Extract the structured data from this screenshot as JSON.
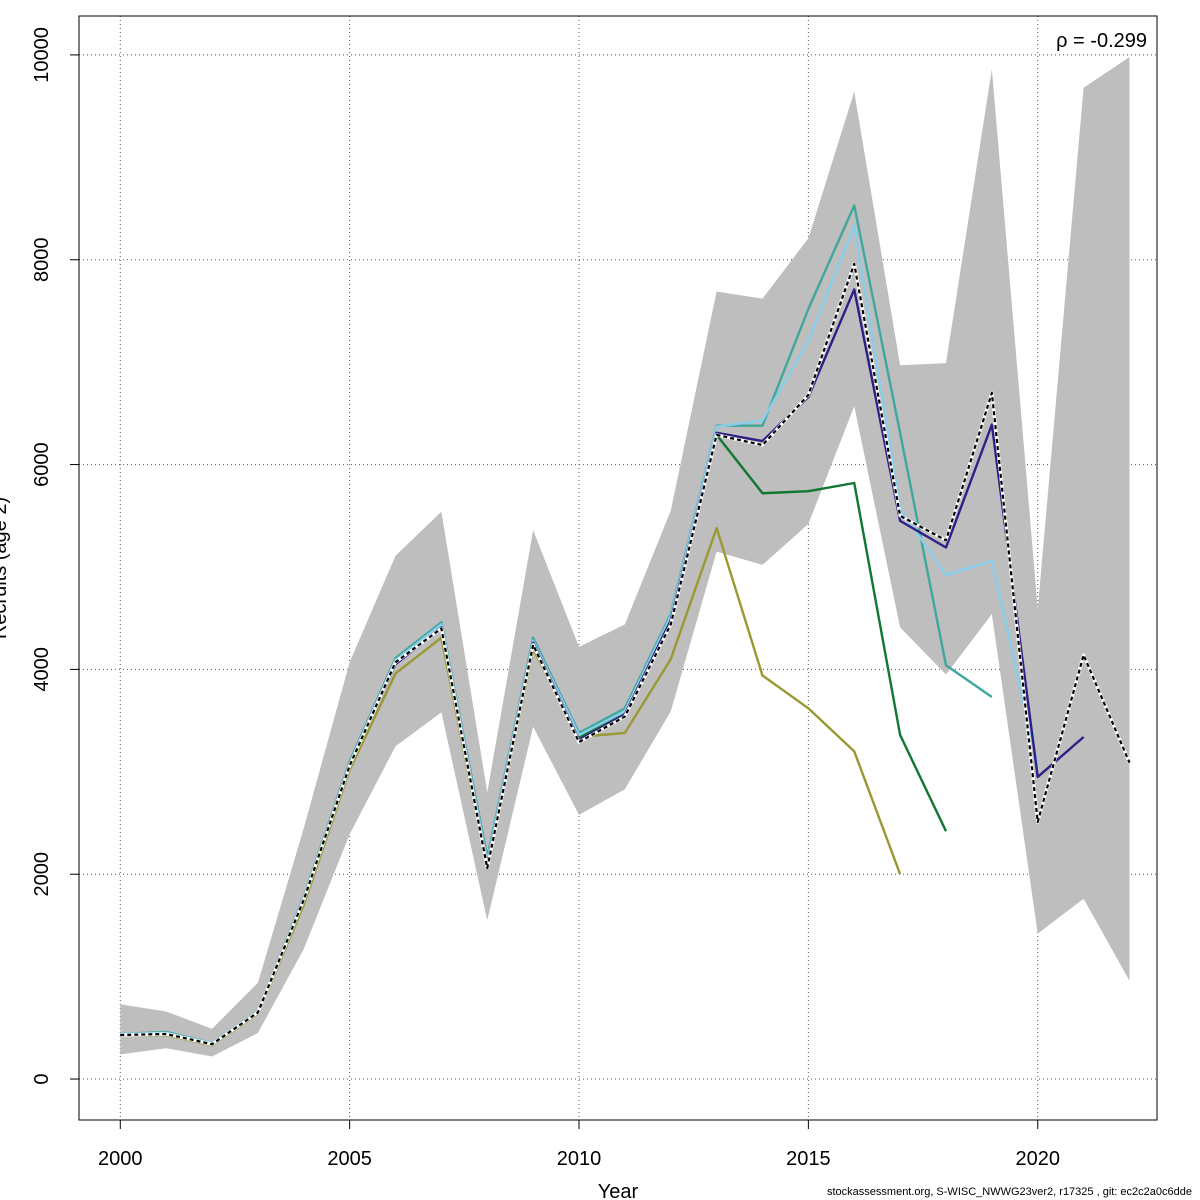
{
  "chart_data": {
    "type": "line",
    "title": "",
    "xlabel": "Year",
    "ylabel": "Recruits (age 2)",
    "xlim": [
      1999.1,
      2022.6
    ],
    "ylim": [
      -400,
      10380
    ],
    "x_ticks": [
      2000,
      2005,
      2010,
      2015,
      2020
    ],
    "y_ticks": [
      0,
      2000,
      4000,
      6000,
      8000,
      10000
    ],
    "grid": true,
    "annotation": "ρ = -0.299",
    "confidence_band": {
      "x": [
        2000,
        2001,
        2002,
        2003,
        2004,
        2005,
        2006,
        2007,
        2008,
        2009,
        2010,
        2011,
        2012,
        2013,
        2014,
        2015,
        2016,
        2017,
        2018,
        2019,
        2020,
        2021,
        2022
      ],
      "upper": [
        730,
        660,
        490,
        940,
        2450,
        4070,
        5110,
        5540,
        2800,
        5360,
        4220,
        4440,
        5550,
        7690,
        7620,
        8210,
        9640,
        6970,
        6990,
        9860,
        4590,
        9680,
        9980
      ],
      "lower": [
        240,
        300,
        220,
        450,
        1270,
        2390,
        3250,
        3580,
        1550,
        3440,
        2580,
        2830,
        3590,
        5150,
        5020,
        5420,
        6570,
        4410,
        3950,
        4540,
        1420,
        1760,
        960
      ]
    },
    "series": [
      {
        "color": "#000000",
        "dashed": true,
        "x": [
          2000,
          2001,
          2002,
          2003,
          2004,
          2005,
          2006,
          2007,
          2008,
          2009,
          2010,
          2011,
          2012,
          2013,
          2014,
          2015,
          2016,
          2017,
          2018,
          2019,
          2020,
          2021,
          2022
        ],
        "values": [
          430,
          440,
          340,
          650,
          1750,
          3060,
          4070,
          4400,
          2060,
          4240,
          3290,
          3540,
          4440,
          6290,
          6190,
          6680,
          7960,
          5500,
          5260,
          6700,
          2510,
          4140,
          3090
        ]
      },
      {
        "color": "#2e1e87",
        "dashed": false,
        "x": [
          2000,
          2001,
          2002,
          2003,
          2004,
          2005,
          2006,
          2007,
          2008,
          2009,
          2010,
          2011,
          2012,
          2013,
          2014,
          2015,
          2016,
          2017,
          2018,
          2019,
          2020,
          2021
        ],
        "values": [
          430,
          440,
          340,
          650,
          1760,
          3070,
          4050,
          4410,
          2090,
          4260,
          3310,
          3560,
          4480,
          6310,
          6230,
          6660,
          7710,
          5450,
          5190,
          6390,
          2950,
          3340
        ]
      },
      {
        "color": "#87ceeb",
        "dashed": false,
        "x": [
          2000,
          2001,
          2002,
          2003,
          2004,
          2005,
          2006,
          2007,
          2008,
          2009,
          2010,
          2011,
          2012,
          2013,
          2014,
          2015,
          2016,
          2017,
          2018,
          2019,
          2020
        ],
        "values": [
          440,
          450,
          350,
          660,
          1770,
          3080,
          4090,
          4440,
          2130,
          4280,
          3360,
          3590,
          4520,
          6370,
          6430,
          7210,
          8330,
          5570,
          4920,
          5060,
          3070
        ]
      },
      {
        "color": "#3fa79c",
        "dashed": false,
        "x": [
          2000,
          2001,
          2002,
          2003,
          2004,
          2005,
          2006,
          2007,
          2008,
          2009,
          2010,
          2011,
          2012,
          2013,
          2014,
          2015,
          2016,
          2017,
          2018,
          2019
        ],
        "values": [
          440,
          460,
          350,
          660,
          1780,
          3100,
          4110,
          4460,
          2150,
          4310,
          3380,
          3620,
          4540,
          6380,
          6380,
          7520,
          8530,
          6310,
          4040,
          3730
        ]
      },
      {
        "color": "#117733",
        "dashed": false,
        "x": [
          2000,
          2001,
          2002,
          2003,
          2004,
          2005,
          2006,
          2007,
          2008,
          2009,
          2010,
          2011,
          2012,
          2013,
          2014,
          2015,
          2016,
          2017,
          2018
        ],
        "values": [
          430,
          440,
          340,
          650,
          1770,
          3090,
          4100,
          4450,
          2160,
          4240,
          3330,
          3580,
          4520,
          6290,
          5720,
          5740,
          5820,
          3360,
          2420
        ]
      },
      {
        "color": "#999933",
        "dashed": false,
        "x": [
          2000,
          2001,
          2002,
          2003,
          2004,
          2005,
          2006,
          2007,
          2008,
          2009,
          2010,
          2011,
          2012,
          2013,
          2014,
          2015,
          2016,
          2017
        ],
        "values": [
          430,
          430,
          330,
          640,
          1700,
          3020,
          3960,
          4310,
          2050,
          4200,
          3340,
          3380,
          4100,
          5380,
          3940,
          3620,
          3200,
          2000
        ]
      }
    ]
  },
  "footer": "stockassessment.org, S-WISC_NWWG23ver2, r17325 , git: ec2c2a0c6dde"
}
